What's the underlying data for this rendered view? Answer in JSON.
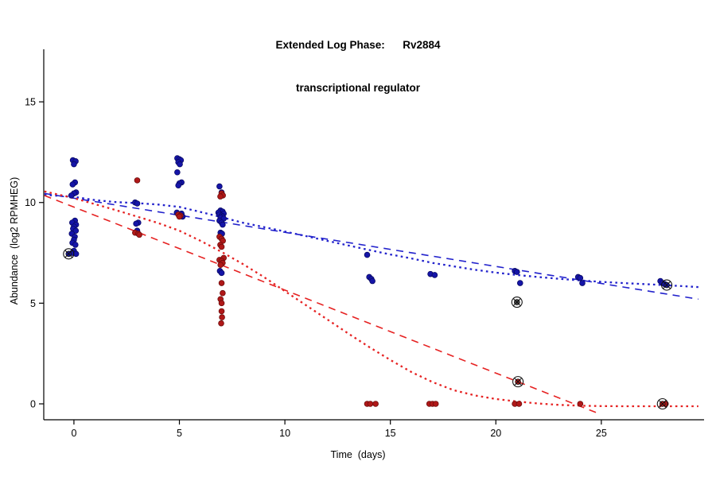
{
  "title": {
    "line1": "Extended Log Phase:      Rv2884",
    "line2": "transcriptional regulator"
  },
  "colors": {
    "blue_line": "#2222cc",
    "red_line": "#e62222",
    "blue_point": "#1515a8",
    "blue_point_edge": "#0a0a66",
    "red_point": "#b01818",
    "red_point_edge": "#6e0d0d",
    "gray_point": "#4a4a4a",
    "flag": "#111111",
    "axis": "#000000"
  },
  "chart_data": {
    "type": "scatter",
    "title": "Extended Log Phase:      Rv2884",
    "subtitle": "transcriptional regulator",
    "xlabel": "Time  (days)",
    "ylabel": "Abundance  (log2 RPMHEG)",
    "x_ticks": [
      0,
      5,
      10,
      15,
      20,
      25
    ],
    "y_ticks": [
      0,
      5,
      10,
      15
    ],
    "x_range": [
      -1.43,
      29.87
    ],
    "y_range": [
      -0.79,
      17.61
    ],
    "grid": false,
    "legend": "none",
    "series": [
      {
        "id": "blue-dashed-trendline",
        "kind": "line",
        "color": "blue_line",
        "dash": "9 7",
        "width": 1.6,
        "points": [
          [
            -1.4,
            10.45
          ],
          [
            29.6,
            5.2
          ]
        ]
      },
      {
        "id": "blue-dotted-smooth",
        "kind": "line",
        "color": "blue_line",
        "dash": "2.6 4.2",
        "width": 2.3,
        "points": [
          [
            -1.4,
            10.38
          ],
          [
            0,
            10.28
          ],
          [
            1,
            10.12
          ],
          [
            2,
            10.02
          ],
          [
            3,
            9.97
          ],
          [
            4,
            9.9
          ],
          [
            5,
            9.78
          ],
          [
            6,
            9.53
          ],
          [
            7,
            9.27
          ],
          [
            8,
            9.0
          ],
          [
            9,
            8.78
          ],
          [
            10,
            8.56
          ],
          [
            11,
            8.33
          ],
          [
            12,
            8.1
          ],
          [
            13,
            7.87
          ],
          [
            14,
            7.64
          ],
          [
            15,
            7.42
          ],
          [
            16,
            7.22
          ],
          [
            17,
            7.0
          ],
          [
            18,
            6.83
          ],
          [
            19,
            6.66
          ],
          [
            20,
            6.52
          ],
          [
            21,
            6.4
          ],
          [
            22,
            6.3
          ],
          [
            23,
            6.21
          ],
          [
            24,
            6.13
          ],
          [
            25,
            6.06
          ],
          [
            26,
            6.0
          ],
          [
            27,
            5.95
          ],
          [
            28,
            5.9
          ],
          [
            29.6,
            5.8
          ]
        ]
      },
      {
        "id": "red-dashed-trendline",
        "kind": "line",
        "color": "red_line",
        "dash": "9 7",
        "width": 1.6,
        "points": [
          [
            -1.4,
            10.35
          ],
          [
            24.8,
            -0.45
          ]
        ]
      },
      {
        "id": "red-dotted-smooth",
        "kind": "line",
        "color": "red_line",
        "dash": "2.6 4.2",
        "width": 2.3,
        "points": [
          [
            -1.4,
            10.55
          ],
          [
            0,
            10.22
          ],
          [
            1,
            9.92
          ],
          [
            2,
            9.62
          ],
          [
            3,
            9.3
          ],
          [
            4,
            8.98
          ],
          [
            5,
            8.6
          ],
          [
            6,
            8.1
          ],
          [
            7,
            7.55
          ],
          [
            8,
            6.95
          ],
          [
            9,
            6.3
          ],
          [
            10,
            5.6
          ],
          [
            11,
            4.9
          ],
          [
            12,
            4.2
          ],
          [
            13,
            3.5
          ],
          [
            14,
            2.82
          ],
          [
            15,
            2.18
          ],
          [
            16,
            1.58
          ],
          [
            17,
            1.08
          ],
          [
            18,
            0.68
          ],
          [
            19,
            0.42
          ],
          [
            20,
            0.24
          ],
          [
            21,
            0.12
          ],
          [
            22,
            0.02
          ],
          [
            23,
            -0.05
          ],
          [
            24,
            -0.09
          ],
          [
            25,
            -0.11
          ],
          [
            26,
            -0.12
          ],
          [
            27,
            -0.12
          ],
          [
            28,
            -0.12
          ],
          [
            29.6,
            -0.12
          ]
        ]
      },
      {
        "id": "blue-points",
        "kind": "points",
        "color": "blue_point",
        "stroke": "blue_point_edge",
        "points": [
          [
            -0.05,
            12.1
          ],
          [
            0.08,
            12.05
          ],
          [
            0.0,
            11.9
          ],
          [
            0.05,
            11.0
          ],
          [
            -0.06,
            10.9
          ],
          [
            0.1,
            10.5
          ],
          [
            0.0,
            10.45
          ],
          [
            -0.12,
            10.35
          ],
          [
            0.05,
            9.1
          ],
          [
            -0.08,
            9.0
          ],
          [
            0.1,
            8.9
          ],
          [
            0.0,
            8.8
          ],
          [
            -0.04,
            8.7
          ],
          [
            0.09,
            8.6
          ],
          [
            -0.1,
            8.45
          ],
          [
            0.04,
            8.3
          ],
          [
            0.0,
            8.15
          ],
          [
            -0.07,
            8.0
          ],
          [
            0.07,
            7.9
          ],
          [
            0.0,
            7.6
          ],
          [
            -0.08,
            7.5
          ],
          [
            0.1,
            7.45
          ],
          [
            2.9,
            10.0
          ],
          [
            3.0,
            9.95
          ],
          [
            3.05,
            9.0
          ],
          [
            2.95,
            8.95
          ],
          [
            3.0,
            8.6
          ],
          [
            4.9,
            12.2
          ],
          [
            5.0,
            12.15
          ],
          [
            5.07,
            12.1
          ],
          [
            4.95,
            12.0
          ],
          [
            5.02,
            11.9
          ],
          [
            4.9,
            11.5
          ],
          [
            5.1,
            11.0
          ],
          [
            5.0,
            10.95
          ],
          [
            4.95,
            10.85
          ],
          [
            4.88,
            9.5
          ],
          [
            5.1,
            9.45
          ],
          [
            5.15,
            9.3
          ],
          [
            6.9,
            10.8
          ],
          [
            7.0,
            10.5
          ],
          [
            6.95,
            9.6
          ],
          [
            7.05,
            9.55
          ],
          [
            6.85,
            9.5
          ],
          [
            7.1,
            9.45
          ],
          [
            6.9,
            9.4
          ],
          [
            7.0,
            9.35
          ],
          [
            7.05,
            9.3
          ],
          [
            6.95,
            9.25
          ],
          [
            7.1,
            9.2
          ],
          [
            6.9,
            9.1
          ],
          [
            7.0,
            9.0
          ],
          [
            7.05,
            8.9
          ],
          [
            6.95,
            8.5
          ],
          [
            7.02,
            8.45
          ],
          [
            6.92,
            6.6
          ],
          [
            7.0,
            6.5
          ],
          [
            13.9,
            7.4
          ],
          [
            14.0,
            6.3
          ],
          [
            14.1,
            6.2
          ],
          [
            14.15,
            6.1
          ],
          [
            16.9,
            6.45
          ],
          [
            17.1,
            6.4
          ],
          [
            20.9,
            6.6
          ],
          [
            21.0,
            6.55
          ],
          [
            21.15,
            6.0
          ],
          [
            23.9,
            6.3
          ],
          [
            24.0,
            6.25
          ],
          [
            24.1,
            6.0
          ],
          [
            27.8,
            6.1
          ],
          [
            27.9,
            6.0
          ],
          [
            28.0,
            5.95
          ]
        ]
      },
      {
        "id": "red-points",
        "kind": "points",
        "color": "red_point",
        "stroke": "red_point_edge",
        "points": [
          [
            3.0,
            11.1
          ],
          [
            2.9,
            8.5
          ],
          [
            3.05,
            8.45
          ],
          [
            3.1,
            8.4
          ],
          [
            4.95,
            9.4
          ],
          [
            5.05,
            9.35
          ],
          [
            5.0,
            9.3
          ],
          [
            7.0,
            10.45
          ],
          [
            7.06,
            10.35
          ],
          [
            6.94,
            10.3
          ],
          [
            6.9,
            8.3
          ],
          [
            7.0,
            8.2
          ],
          [
            7.06,
            8.1
          ],
          [
            6.94,
            7.9
          ],
          [
            7.0,
            7.8
          ],
          [
            7.1,
            7.25
          ],
          [
            6.9,
            7.15
          ],
          [
            7.0,
            7.1
          ],
          [
            7.05,
            7.0
          ],
          [
            6.95,
            6.9
          ],
          [
            7.0,
            6.0
          ],
          [
            7.05,
            5.5
          ],
          [
            6.95,
            5.2
          ],
          [
            7.0,
            5.0
          ],
          [
            7.0,
            4.6
          ],
          [
            7.02,
            4.3
          ],
          [
            6.98,
            4.0
          ],
          [
            13.9,
            0.0
          ],
          [
            14.05,
            0.0
          ],
          [
            14.3,
            0.0
          ],
          [
            16.85,
            0.0
          ],
          [
            17.0,
            0.0
          ],
          [
            17.15,
            0.0
          ],
          [
            20.9,
            0.0
          ],
          [
            21.1,
            0.0
          ],
          [
            24.0,
            0.0
          ],
          [
            28.05,
            0.0
          ]
        ]
      }
    ],
    "flagged_points": [
      {
        "x": -0.25,
        "y": 7.45,
        "color": "blue_point"
      },
      {
        "x": 21.0,
        "y": 5.05,
        "color": "gray_point"
      },
      {
        "x": 21.05,
        "y": 1.1,
        "color": "red_point"
      },
      {
        "x": 28.1,
        "y": 5.9,
        "color": "blue_point"
      },
      {
        "x": 27.9,
        "y": 0.0,
        "color": "red_point"
      }
    ]
  }
}
